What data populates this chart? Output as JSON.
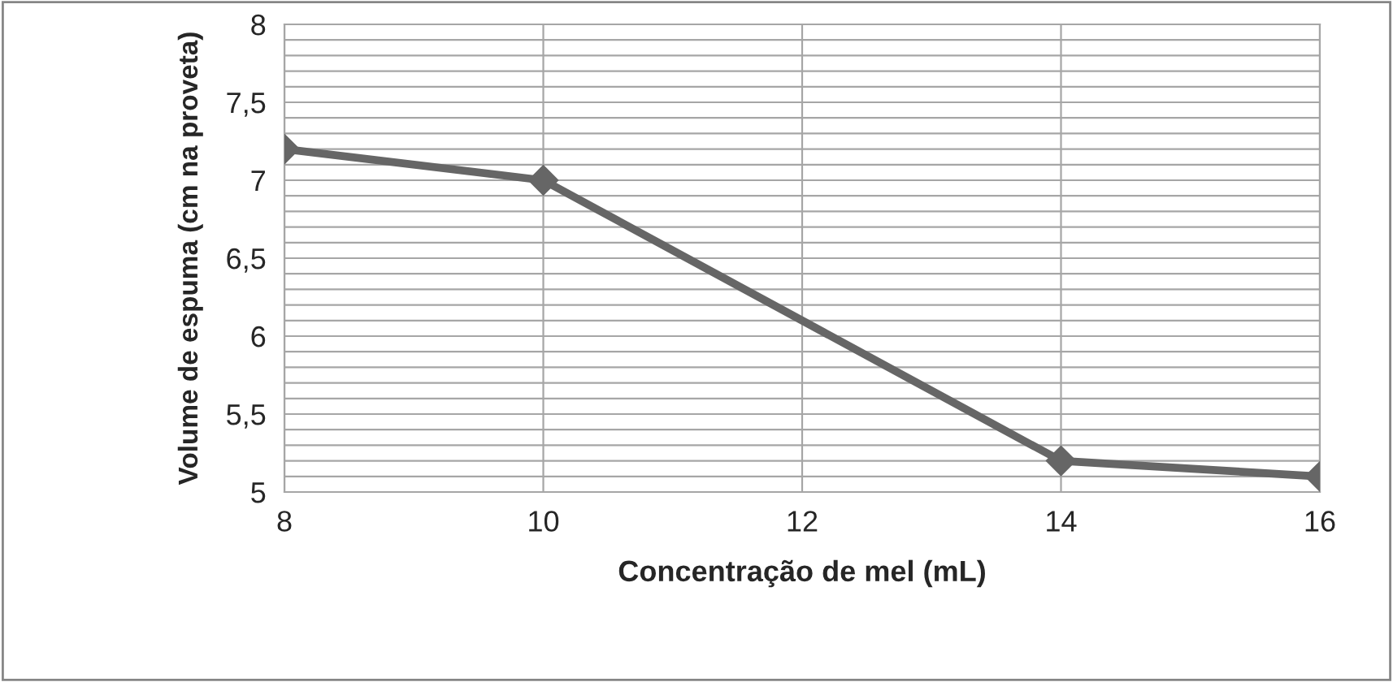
{
  "chart_data": {
    "type": "line",
    "xlabel": "Concentração de mel (mL)",
    "ylabel": "Volume de espuma (cm na proveta)",
    "x": [
      8,
      10,
      14,
      16
    ],
    "series": [
      {
        "color": "#666666",
        "values": [
          7.2,
          7.0,
          5.2,
          5.1
        ]
      }
    ],
    "xlim": [
      8,
      16
    ],
    "xticks": [
      8,
      10,
      12,
      14,
      16
    ],
    "ylim": [
      5,
      8
    ],
    "yticks": [
      5,
      {
        "value": 5.1,
        "label": null
      },
      {
        "value": 5.2,
        "label": null
      },
      {
        "value": 5.3,
        "label": null
      },
      {
        "value": 5.4,
        "label": null
      },
      {
        "value": 5.5,
        "label": "5,5"
      },
      {
        "value": 5.6,
        "label": null
      },
      {
        "value": 5.7,
        "label": null
      },
      {
        "value": 5.8,
        "label": null
      },
      {
        "value": 5.9,
        "label": null
      },
      6,
      {
        "value": 6.1,
        "label": null
      },
      {
        "value": 6.2,
        "label": null
      },
      {
        "value": 6.3,
        "label": null
      },
      {
        "value": 6.4,
        "label": null
      },
      {
        "value": 6.5,
        "label": "6,5"
      },
      {
        "value": 6.6,
        "label": null
      },
      {
        "value": 6.7,
        "label": null
      },
      {
        "value": 6.8,
        "label": null
      },
      {
        "value": 6.9,
        "label": null
      },
      7,
      {
        "value": 7.1,
        "label": null
      },
      {
        "value": 7.2,
        "label": null
      },
      {
        "value": 7.3,
        "label": null
      },
      {
        "value": 7.4,
        "label": null
      },
      {
        "value": 7.5,
        "label": "7,5"
      },
      {
        "value": 7.6,
        "label": null
      },
      {
        "value": 7.7,
        "label": null
      },
      {
        "value": 7.8,
        "label": null
      },
      {
        "value": 7.9,
        "label": null
      },
      8
    ],
    "grid": true,
    "marker": "diamond",
    "line_style": "solid",
    "legend": false
  }
}
